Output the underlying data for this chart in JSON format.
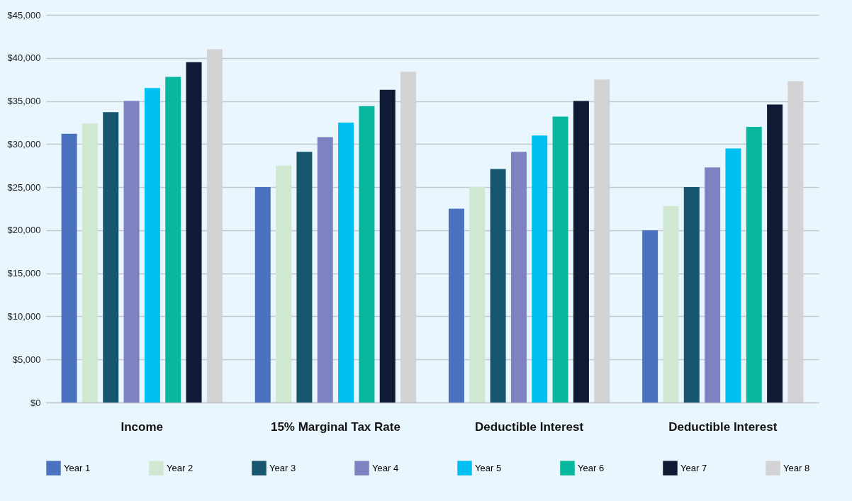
{
  "chart_data": {
    "type": "bar",
    "categories": [
      "Income",
      "15% Marginal Tax Rate",
      "Deductible Interest",
      "Deductible Interest"
    ],
    "series": [
      {
        "name": "Year 1",
        "color": "#4a72bf",
        "values": [
          31200,
          25000,
          22500,
          20000
        ]
      },
      {
        "name": "Year 2",
        "color": "#d0e8d2",
        "values": [
          32400,
          27500,
          25000,
          22800
        ]
      },
      {
        "name": "Year 3",
        "color": "#17566f",
        "values": [
          33700,
          29100,
          27100,
          25000
        ]
      },
      {
        "name": "Year 4",
        "color": "#7f82c0",
        "values": [
          35000,
          30800,
          29100,
          27300
        ]
      },
      {
        "name": "Year 5",
        "color": "#00c0f3",
        "values": [
          36500,
          32500,
          31000,
          29500
        ]
      },
      {
        "name": "Year 6",
        "color": "#07b89e",
        "values": [
          37800,
          34400,
          33200,
          32000
        ]
      },
      {
        "name": "Year 7",
        "color": "#0f1b35",
        "values": [
          39500,
          36300,
          35000,
          34600
        ]
      },
      {
        "name": "Year 8",
        "color": "#d3d3d5",
        "values": [
          41000,
          38400,
          37500,
          37300
        ]
      }
    ],
    "ylim": [
      0,
      45000
    ],
    "yticks": [
      {
        "value": 0,
        "label": "$0"
      },
      {
        "value": 5000,
        "label": "$5,000"
      },
      {
        "value": 10000,
        "label": "$10,000"
      },
      {
        "value": 15000,
        "label": "$15,000"
      },
      {
        "value": 20000,
        "label": "$20,000"
      },
      {
        "value": 25000,
        "label": "$25,000"
      },
      {
        "value": 30000,
        "label": "$30,000"
      },
      {
        "value": 35000,
        "label": "$35,000"
      },
      {
        "value": 40000,
        "label": "$40,000"
      },
      {
        "value": 45000,
        "label": "$45,000"
      }
    ],
    "grid": "y",
    "legend": "bottom"
  }
}
